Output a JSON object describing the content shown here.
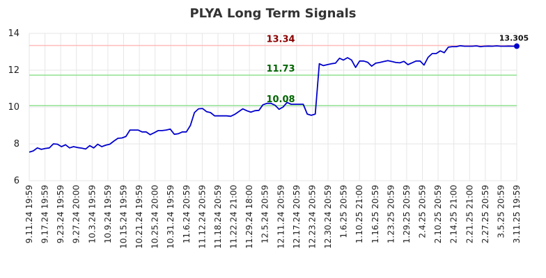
{
  "chart_data": {
    "type": "line",
    "title": "PLYA Long Term Signals",
    "xlabel": "",
    "ylabel": "",
    "ylim": [
      6,
      14
    ],
    "y_ticks": [
      6,
      8,
      10,
      12,
      14
    ],
    "x_tick_labels": [
      "9.11.24 19:59",
      "9.17.24 19:59",
      "9.23.24 19:59",
      "9.27.24 20:00",
      "10.3.24 19:59",
      "10.9.24 19:59",
      "10.15.24 19:59",
      "10.21.24 19:59",
      "10.25.24 20:00",
      "10.31.24 19:59",
      "11.6.24 20:59",
      "11.12.24 20:59",
      "11.18.24 20:59",
      "11.22.24 21:00",
      "11.29.24 18:00",
      "12.5.24 20:59",
      "12.11.24 20:59",
      "12.17.24 20:59",
      "12.23.24 20:59",
      "12.30.24 20:59",
      "1.6.25 20:59",
      "1.10.25 21:00",
      "1.16.25 20:59",
      "1.23.25 20:59",
      "1.29.25 20:59",
      "2.4.25 20:59",
      "2.10.25 20:59",
      "2.14.25 21:00",
      "2.21.25 21:00",
      "2.27.25 20:59",
      "3.5.25 20:59",
      "3.11.25 19:59"
    ],
    "grid": true,
    "series": [
      {
        "color": "#0000cc",
        "values": [
          7.55,
          7.62,
          7.78,
          7.7,
          7.75,
          7.78,
          8.0,
          7.98,
          7.85,
          7.95,
          7.78,
          7.85,
          7.8,
          7.77,
          7.72,
          7.9,
          7.78,
          7.98,
          7.85,
          7.93,
          7.98,
          8.15,
          8.3,
          8.32,
          8.4,
          8.75,
          8.75,
          8.75,
          8.65,
          8.65,
          8.5,
          8.6,
          8.72,
          8.72,
          8.75,
          8.8,
          8.52,
          8.55,
          8.65,
          8.65,
          9.0,
          9.7,
          9.9,
          9.92,
          9.75,
          9.7,
          9.52,
          9.52,
          9.52,
          9.52,
          9.5,
          9.6,
          9.75,
          9.9,
          9.8,
          9.72,
          9.8,
          9.82,
          10.12,
          10.2,
          10.2,
          10.1,
          9.88,
          10.0,
          10.25,
          10.15,
          10.15,
          10.15,
          10.15,
          9.62,
          9.55,
          9.62,
          12.35,
          12.25,
          12.3,
          12.35,
          12.38,
          12.65,
          12.55,
          12.68,
          12.55,
          12.15,
          12.5,
          12.5,
          12.43,
          12.22,
          12.38,
          12.42,
          12.47,
          12.52,
          12.47,
          12.42,
          12.4,
          12.48,
          12.3,
          12.4,
          12.5,
          12.5,
          12.28,
          12.7,
          12.9,
          12.9,
          13.05,
          12.95,
          13.25,
          13.28,
          13.28,
          13.33,
          13.3,
          13.3,
          13.3,
          13.32,
          13.28,
          13.3,
          13.31,
          13.3,
          13.32,
          13.3,
          13.3,
          13.31,
          13.3,
          13.305
        ]
      }
    ],
    "reference_lines": [
      {
        "value": 13.34,
        "label": "13.34",
        "line_color": "#ffbbbb",
        "label_color": "#8b0000"
      },
      {
        "value": 11.73,
        "label": "11.73",
        "line_color": "#90e090",
        "label_color": "#006400"
      },
      {
        "value": 10.08,
        "label": "10.08",
        "line_color": "#90e090",
        "label_color": "#006400"
      }
    ],
    "last_value_label": "13.305"
  }
}
